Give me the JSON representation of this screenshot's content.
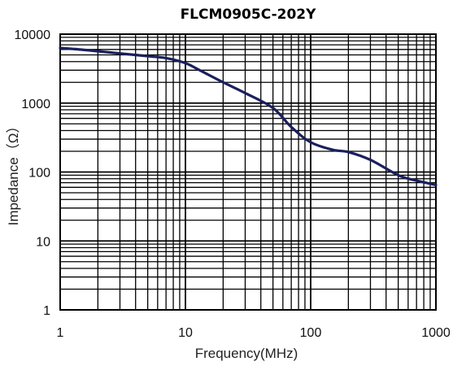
{
  "chart_data": {
    "type": "line",
    "title": "FLCM0905C-202Y",
    "xlabel": "Frequency(MHz)",
    "ylabel": "Impedance（Ω）",
    "x_scale": "log",
    "y_scale": "log",
    "xlim": [
      1,
      1000
    ],
    "ylim": [
      1,
      10000
    ],
    "x_ticks": [
      "1",
      "10",
      "100",
      "1000"
    ],
    "y_ticks": [
      "1",
      "10",
      "100",
      "1000",
      "10000"
    ],
    "grid": true,
    "line_color": "#1a1f5c",
    "series": [
      {
        "x": [
          1,
          1.5,
          2,
          3,
          5,
          7,
          10,
          13,
          20,
          30,
          50,
          70,
          100,
          150,
          200,
          300,
          500,
          700,
          1000
        ],
        "y": [
          6300,
          5950,
          5650,
          5250,
          4800,
          4500,
          3800,
          3000,
          2000,
          1400,
          850,
          450,
          270,
          210,
          195,
          150,
          90,
          75,
          65
        ]
      }
    ]
  }
}
